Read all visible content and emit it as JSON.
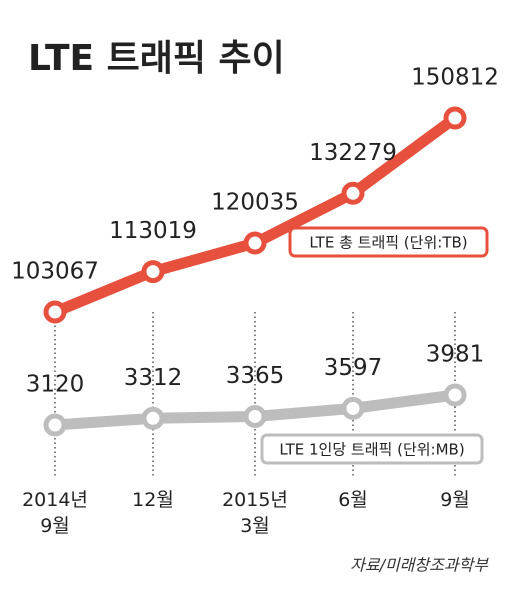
{
  "chart_data": {
    "type": "line",
    "title": "LTE 트래픽 추이",
    "categories": [
      "2014년\n9월",
      "12월",
      "2015년\n3월",
      "6월",
      "9월"
    ],
    "series": [
      {
        "name": "LTE 총 트래픽 (단위:TB)",
        "color": "#e8503e",
        "values": [
          103067,
          113019,
          120035,
          132279,
          150812
        ]
      },
      {
        "name": "LTE 1인당 트래픽 (단위:MB)",
        "color": "#bdbdbd",
        "values": [
          3120,
          3312,
          3365,
          3597,
          3981
        ]
      }
    ],
    "source": "자료/미래창조과학부"
  }
}
